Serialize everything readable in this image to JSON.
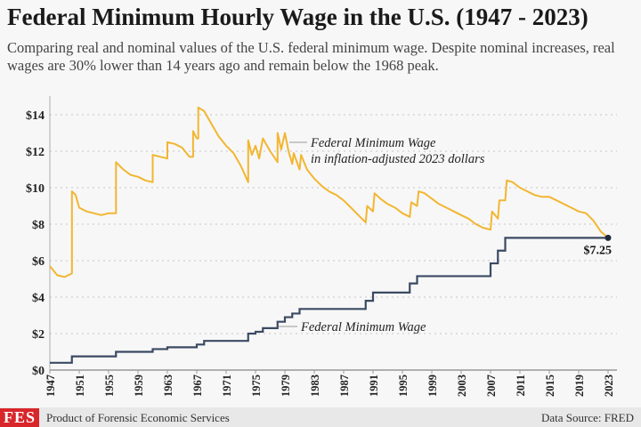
{
  "title": "Federal Minimum Hourly Wage in the U.S. (1947 - 2023)",
  "subtitle": "Comparing real and nominal values of the U.S. federal minimum wage. Despite nominal increases, real wages are 30% lower than 14 years ago and remain below the 1968 peak.",
  "footer": {
    "logo": "FES",
    "product": "Product of Forensic Economic Services",
    "source": "Data Source: FRED"
  },
  "chart_data": {
    "type": "line",
    "title": "Federal Minimum Hourly Wage in the U.S. (1947 - 2023)",
    "xlabel": "",
    "ylabel": "",
    "xlim": [
      1947,
      2023
    ],
    "ylim": [
      0,
      14
    ],
    "grid": "horizontal dotted",
    "x_ticks": [
      "1947",
      "1951",
      "1955",
      "1959",
      "1963",
      "1967",
      "1971",
      "1975",
      "1979",
      "1983",
      "1987",
      "1991",
      "1995",
      "1999",
      "2003",
      "2007",
      "2011",
      "2015",
      "2019",
      "2023"
    ],
    "y_ticks": [
      "$0",
      "$2",
      "$4",
      "$6",
      "$8",
      "$10",
      "$12",
      "$14"
    ],
    "series": [
      {
        "name": "Federal Minimum Wage in inflation-adjusted 2023 dollars",
        "label_line1": "Federal Minimum Wage",
        "label_line2": "in inflation-adjusted 2023 dollars",
        "color": "#f2b631",
        "points": [
          [
            1947,
            5.7
          ],
          [
            1948,
            5.2
          ],
          [
            1949,
            5.1
          ],
          [
            1950,
            5.3
          ],
          [
            1950,
            9.8
          ],
          [
            1950.5,
            9.6
          ],
          [
            1951,
            8.9
          ],
          [
            1952,
            8.7
          ],
          [
            1953,
            8.6
          ],
          [
            1954,
            8.5
          ],
          [
            1955,
            8.6
          ],
          [
            1956,
            8.6
          ],
          [
            1956,
            11.4
          ],
          [
            1957,
            11.0
          ],
          [
            1958,
            10.7
          ],
          [
            1959,
            10.6
          ],
          [
            1960,
            10.4
          ],
          [
            1961,
            10.3
          ],
          [
            1961,
            11.8
          ],
          [
            1962,
            11.7
          ],
          [
            1963,
            11.6
          ],
          [
            1963,
            12.5
          ],
          [
            1964,
            12.4
          ],
          [
            1965,
            12.2
          ],
          [
            1966,
            11.7
          ],
          [
            1966.5,
            11.7
          ],
          [
            1966.5,
            13.1
          ],
          [
            1967,
            12.7
          ],
          [
            1967.2,
            12.7
          ],
          [
            1967.2,
            14.4
          ],
          [
            1968,
            14.2
          ],
          [
            1969,
            13.5
          ],
          [
            1970,
            12.8
          ],
          [
            1971,
            12.3
          ],
          [
            1972,
            11.9
          ],
          [
            1973,
            11.2
          ],
          [
            1974,
            10.3
          ],
          [
            1974,
            12.6
          ],
          [
            1974.5,
            11.8
          ],
          [
            1975,
            12.3
          ],
          [
            1975.5,
            11.6
          ],
          [
            1976,
            12.7
          ],
          [
            1977,
            12.0
          ],
          [
            1978,
            11.4
          ],
          [
            1978,
            13.0
          ],
          [
            1978.5,
            12.1
          ],
          [
            1979,
            13.0
          ],
          [
            1979.5,
            12.0
          ],
          [
            1980,
            11.3
          ],
          [
            1980.2,
            11.9
          ],
          [
            1981,
            11.0
          ],
          [
            1981.2,
            11.8
          ],
          [
            1982,
            11.0
          ],
          [
            1983,
            10.5
          ],
          [
            1984,
            10.1
          ],
          [
            1985,
            9.8
          ],
          [
            1986,
            9.6
          ],
          [
            1987,
            9.3
          ],
          [
            1988,
            8.9
          ],
          [
            1989,
            8.5
          ],
          [
            1990,
            8.1
          ],
          [
            1990.2,
            9.0
          ],
          [
            1991,
            8.7
          ],
          [
            1991.2,
            9.7
          ],
          [
            1992,
            9.4
          ],
          [
            1993,
            9.1
          ],
          [
            1994,
            8.9
          ],
          [
            1995,
            8.6
          ],
          [
            1996,
            8.4
          ],
          [
            1996.2,
            9.2
          ],
          [
            1997,
            9.0
          ],
          [
            1997.2,
            9.8
          ],
          [
            1998,
            9.7
          ],
          [
            1999,
            9.4
          ],
          [
            2000,
            9.1
          ],
          [
            2001,
            8.9
          ],
          [
            2002,
            8.7
          ],
          [
            2003,
            8.5
          ],
          [
            2004,
            8.3
          ],
          [
            2005,
            8.0
          ],
          [
            2006,
            7.8
          ],
          [
            2007,
            7.7
          ],
          [
            2007.2,
            8.7
          ],
          [
            2008,
            8.3
          ],
          [
            2008.2,
            9.3
          ],
          [
            2009,
            9.3
          ],
          [
            2009.2,
            10.4
          ],
          [
            2010,
            10.3
          ],
          [
            2011,
            10.0
          ],
          [
            2012,
            9.8
          ],
          [
            2013,
            9.6
          ],
          [
            2014,
            9.5
          ],
          [
            2015,
            9.5
          ],
          [
            2016,
            9.3
          ],
          [
            2017,
            9.1
          ],
          [
            2018,
            8.9
          ],
          [
            2019,
            8.7
          ],
          [
            2020,
            8.6
          ],
          [
            2021,
            8.2
          ],
          [
            2022,
            7.6
          ],
          [
            2023,
            7.25
          ]
        ]
      },
      {
        "name": "Federal Minimum Wage",
        "color": "#3b4a63",
        "steps": [
          [
            1947,
            0.4
          ],
          [
            1950,
            0.75
          ],
          [
            1956,
            1.0
          ],
          [
            1961,
            1.15
          ],
          [
            1963,
            1.25
          ],
          [
            1967,
            1.4
          ],
          [
            1968,
            1.6
          ],
          [
            1974,
            2.0
          ],
          [
            1975,
            2.1
          ],
          [
            1976,
            2.3
          ],
          [
            1978,
            2.65
          ],
          [
            1979,
            2.9
          ],
          [
            1980,
            3.1
          ],
          [
            1981,
            3.35
          ],
          [
            1990,
            3.8
          ],
          [
            1991,
            4.25
          ],
          [
            1996,
            4.75
          ],
          [
            1997,
            5.15
          ],
          [
            2007,
            5.85
          ],
          [
            2008,
            6.55
          ],
          [
            2009,
            7.25
          ],
          [
            2023,
            7.25
          ]
        ]
      }
    ],
    "annotations": [
      {
        "text": "$7.25",
        "x": 2023,
        "y": 7.25
      }
    ]
  }
}
